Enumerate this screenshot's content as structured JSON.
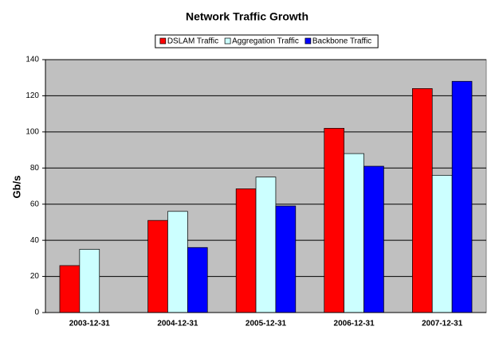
{
  "chart_data": {
    "type": "bar",
    "title": "Network Traffic Growth",
    "y_label": "Gb/s",
    "categories": [
      "2003-12-31",
      "2004-12-31",
      "2005-12-31",
      "2006-12-31",
      "2007-12-31"
    ],
    "series": [
      {
        "name": "DSLAM Traffic",
        "color": "#ff0000",
        "values": [
          26,
          51,
          68.5,
          102,
          124
        ]
      },
      {
        "name": "Aggregation Traffic",
        "color": "#ccffff",
        "values": [
          35,
          56,
          75,
          88,
          76
        ]
      },
      {
        "name": "Backbone Traffic",
        "color": "#0000ff",
        "values": [
          null,
          36,
          59,
          81,
          128
        ]
      }
    ],
    "ylim": [
      0,
      140
    ],
    "yticks": [
      0,
      20,
      40,
      60,
      80,
      100,
      120,
      140
    ],
    "grid": true,
    "legend": "top",
    "plot_background": "#c0c0c0"
  }
}
